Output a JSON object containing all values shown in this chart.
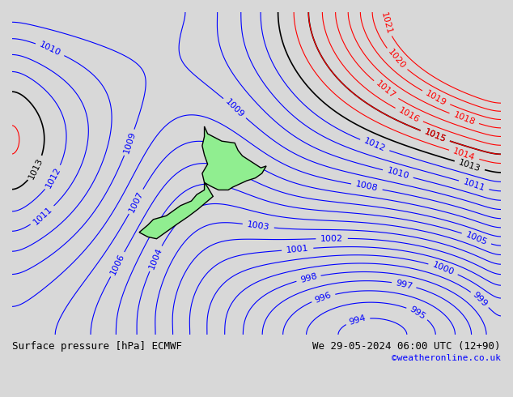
{
  "title_left": "Surface pressure [hPa] ECMWF",
  "title_right": "We 29-05-2024 06:00 UTC (12+90)",
  "copyright": "©weatheronline.co.uk",
  "bg_color": "#d8d8d8",
  "pressure_min": 991,
  "pressure_max": 1015,
  "pressure_step": 1,
  "isobar_black_values": [
    1013,
    1015
  ],
  "isobar_red_min": 1014,
  "isobar_red_max": 1020,
  "nz_land_color": "#90ee90",
  "nz_border_color": "#000000",
  "font_size_labels": 8,
  "font_size_bottom": 9,
  "font_size_copyright": 8
}
